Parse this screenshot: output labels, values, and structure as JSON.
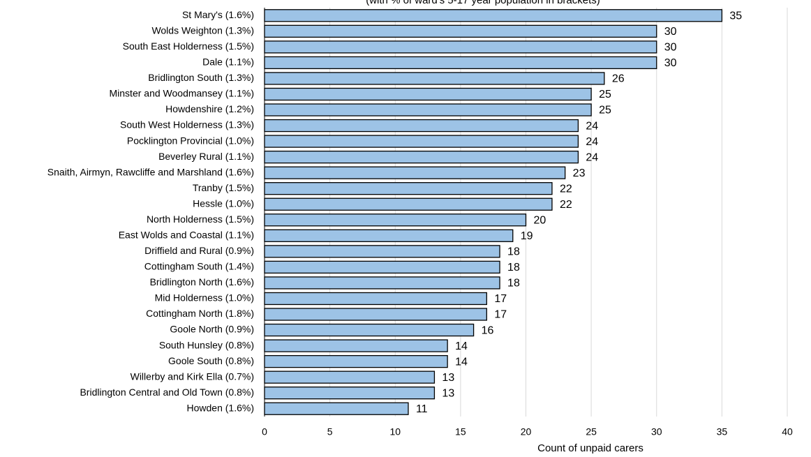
{
  "chart_data": {
    "type": "bar",
    "orientation": "horizontal",
    "subtitle": "(with % of ward's 5-17 year population in brackets)",
    "x_label": "Count of unpaid carers",
    "categories": [
      "St Mary's (1.6%)",
      "Wolds Weighton (1.3%)",
      "South East Holderness (1.5%)",
      "Dale (1.1%)",
      "Bridlington South (1.3%)",
      "Minster and Woodmansey (1.1%)",
      "Howdenshire (1.2%)",
      "South West Holderness (1.3%)",
      "Pocklington Provincial (1.0%)",
      "Beverley Rural (1.1%)",
      "Snaith, Airmyn, Rawcliffe and Marshland (1.6%)",
      "Tranby (1.5%)",
      "Hessle (1.0%)",
      "North Holderness (1.5%)",
      "East Wolds and Coastal (1.1%)",
      "Driffield and Rural (0.9%)",
      "Cottingham South (1.4%)",
      "Bridlington North (1.6%)",
      "Mid Holderness (1.0%)",
      "Cottingham North (1.8%)",
      "Goole North (0.9%)",
      "South Hunsley (0.8%)",
      "Goole South (0.8%)",
      "Willerby and Kirk Ella (0.7%)",
      "Bridlington Central and Old Town (0.8%)",
      "Howden (1.6%)"
    ],
    "values": [
      35,
      30,
      30,
      30,
      26,
      25,
      25,
      24,
      24,
      24,
      23,
      22,
      22,
      20,
      19,
      18,
      18,
      18,
      17,
      17,
      16,
      14,
      14,
      13,
      13,
      11
    ],
    "color": "#9dc3e6",
    "xlim": [
      0,
      40
    ],
    "xticks": [
      0,
      5,
      10,
      15,
      20,
      25,
      30,
      35,
      40
    ],
    "grid": true
  }
}
